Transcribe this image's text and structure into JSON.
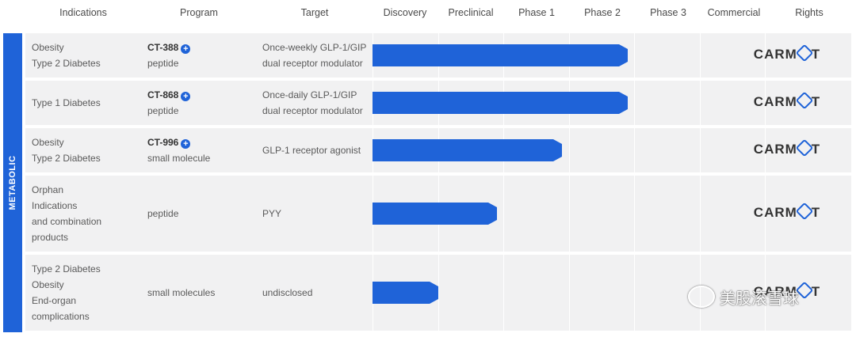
{
  "header": {
    "columns": [
      "Indications",
      "Program",
      "Target",
      "Discovery",
      "Preclinical",
      "Phase 1",
      "Phase 2",
      "Phase 3",
      "Commercial",
      "Rights"
    ]
  },
  "side_label": "METABOLIC",
  "stage_order": [
    "Discovery",
    "Preclinical",
    "Phase 1",
    "Phase 2",
    "Phase 3",
    "Commercial"
  ],
  "rows": [
    {
      "indications": [
        "Obesity",
        "Type 2 Diabetes"
      ],
      "program_code": "CT-388",
      "program_type": "peptide",
      "target": [
        "Once-weekly GLP-1/GIP",
        "dual receptor modulator"
      ],
      "progress_stage": "Phase 2",
      "progress_fraction": 0.9,
      "rights": "CARMOT"
    },
    {
      "indications": [
        "Type 1 Diabetes"
      ],
      "program_code": "CT-868",
      "program_type": "peptide",
      "target": [
        "Once-daily GLP-1/GIP",
        "dual receptor modulator"
      ],
      "progress_stage": "Phase 2",
      "progress_fraction": 0.9,
      "rights": "CARMOT"
    },
    {
      "indications": [
        "Obesity",
        "Type 2 Diabetes"
      ],
      "program_code": "CT-996",
      "program_type": "small molecule",
      "target": [
        "GLP-1 receptor agonist"
      ],
      "progress_stage": "Phase 1",
      "progress_fraction": 0.9,
      "rights": "CARMOT"
    },
    {
      "indications": [
        "Orphan",
        "Indications",
        "and combination",
        "products"
      ],
      "program_code": "",
      "program_type": "peptide",
      "target": [
        "PYY"
      ],
      "progress_stage": "Preclinical",
      "progress_fraction": 0.9,
      "rights": "CARMOT"
    },
    {
      "indications": [
        "Type 2 Diabetes",
        "Obesity",
        "End-organ",
        "complications"
      ],
      "program_code": "",
      "program_type": "small molecules",
      "target": [
        "undisclosed"
      ],
      "progress_stage": "Discovery",
      "progress_fraction": 1.0,
      "rights": "CARMOT"
    }
  ],
  "watermark": "美股滚雪球",
  "colors": {
    "accent": "#1f63d8",
    "row_bg": "#f1f1f2",
    "text": "#5a5a5a"
  },
  "icons": {
    "program_marker": "plus-circle-icon",
    "watermark": "wechat-icon"
  }
}
